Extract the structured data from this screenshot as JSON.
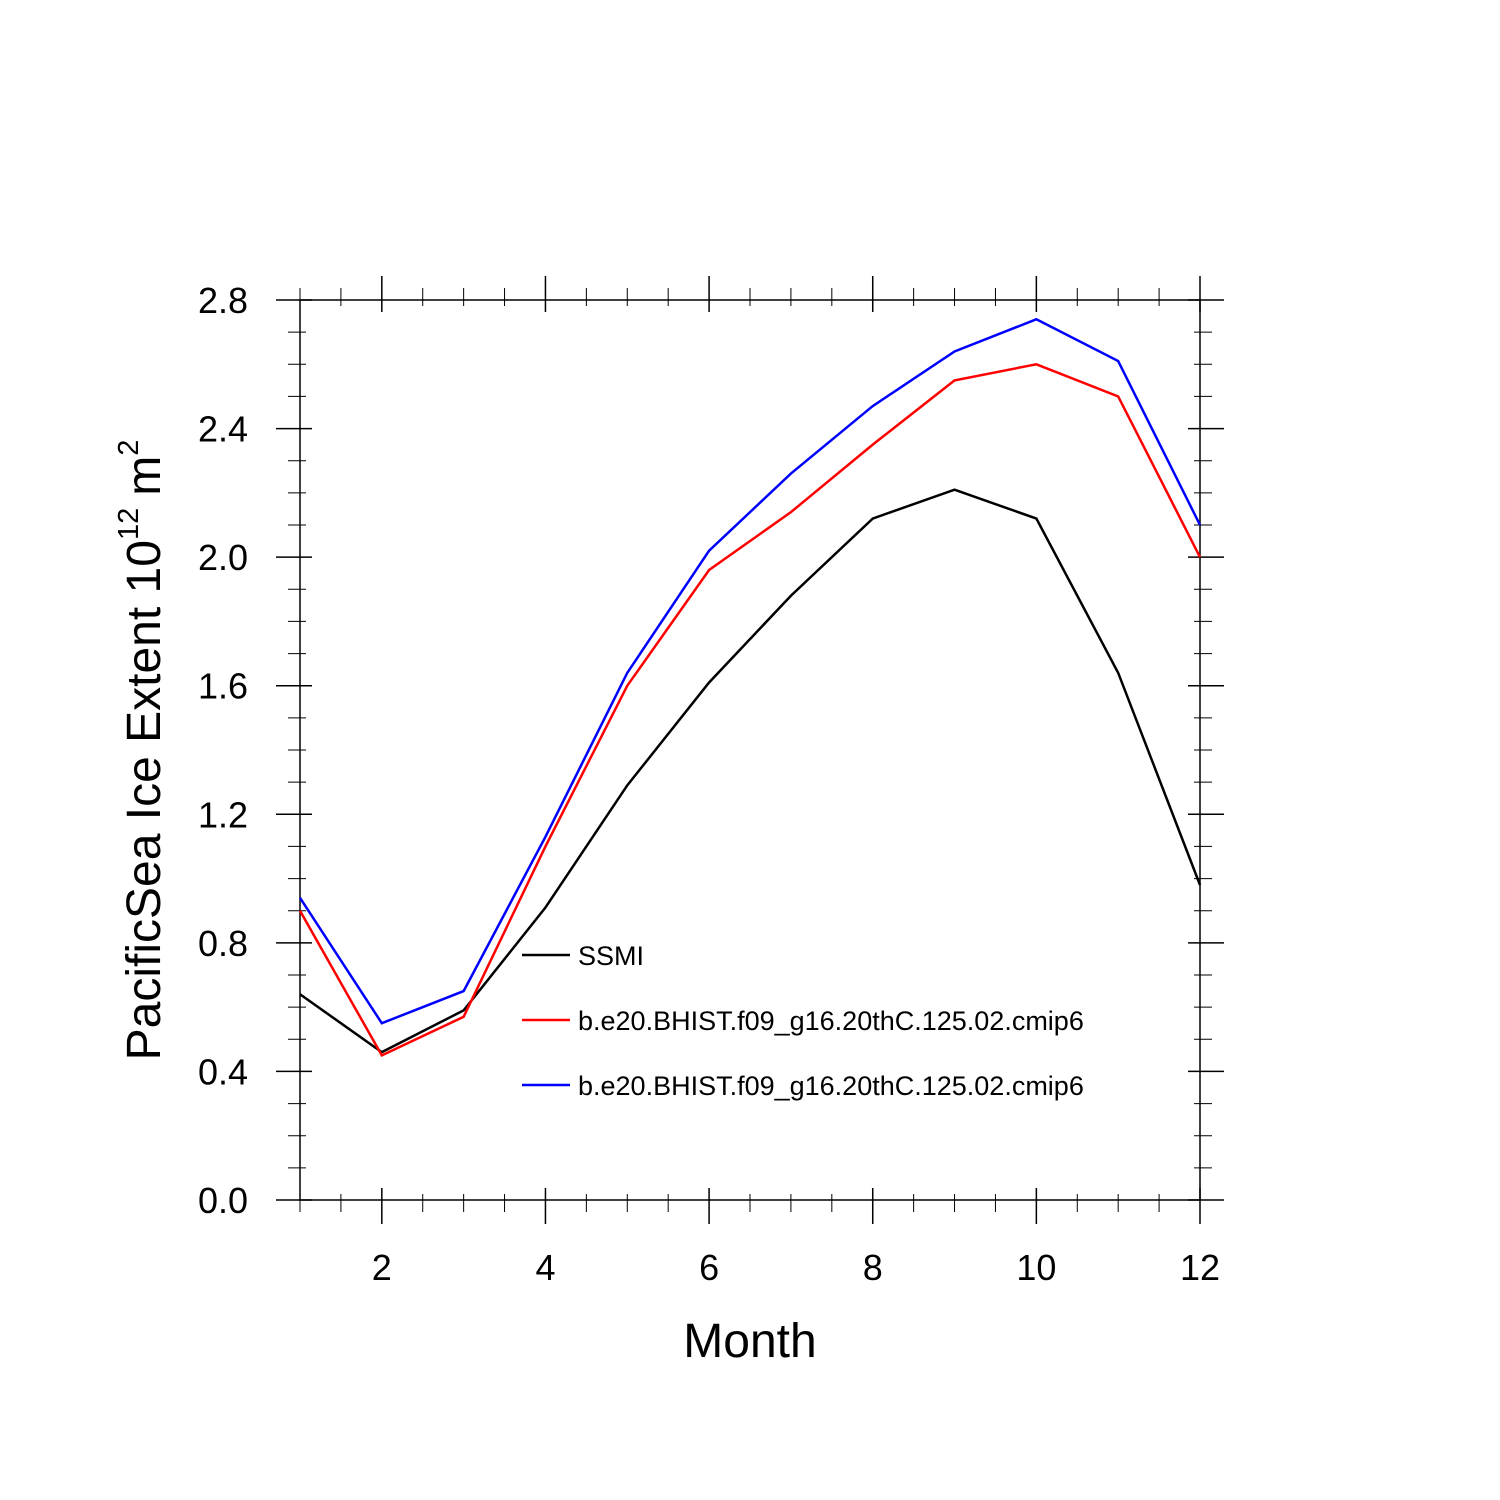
{
  "chart_data": {
    "type": "line",
    "title": "",
    "xlabel": "Month",
    "ylabel": {
      "main": "PacificSea Ice Extent 10",
      "exponent": "12",
      "unit": "m",
      "unit_exponent": "2"
    },
    "xlim": [
      1,
      12
    ],
    "ylim": [
      0.0,
      2.8
    ],
    "x_ticks": [
      2,
      4,
      6,
      8,
      10,
      12
    ],
    "x_tick_labels": [
      "2",
      "4",
      "6",
      "8",
      "10",
      "12"
    ],
    "y_ticks": [
      0.0,
      0.4,
      0.8,
      1.2,
      1.6,
      2.0,
      2.4,
      2.8
    ],
    "y_tick_labels": [
      "0.0",
      "0.4",
      "0.8",
      "1.2",
      "1.6",
      "2.0",
      "2.4",
      "2.8"
    ],
    "grid": false,
    "legend_position": "center-right",
    "x": [
      1,
      2,
      3,
      4,
      5,
      6,
      7,
      8,
      9,
      10,
      11,
      12
    ],
    "series": [
      {
        "name": "SSMI",
        "color": "#000000",
        "values": [
          0.64,
          0.46,
          0.59,
          0.91,
          1.29,
          1.61,
          1.88,
          2.12,
          2.21,
          2.12,
          1.64,
          0.98
        ]
      },
      {
        "name": "b.e20.BHIST.f09_g16.20thC.125.02.cmip6",
        "color": "#ff0000",
        "values": [
          0.9,
          0.45,
          0.57,
          1.1,
          1.6,
          1.96,
          2.14,
          2.35,
          2.55,
          2.6,
          2.5,
          2.0
        ]
      },
      {
        "name": "b.e20.BHIST.f09_g16.20thC.125.02.cmip6",
        "color": "#0000ff",
        "values": [
          0.94,
          0.55,
          0.65,
          1.13,
          1.64,
          2.02,
          2.26,
          2.47,
          2.64,
          2.74,
          2.61,
          2.1
        ]
      }
    ]
  }
}
